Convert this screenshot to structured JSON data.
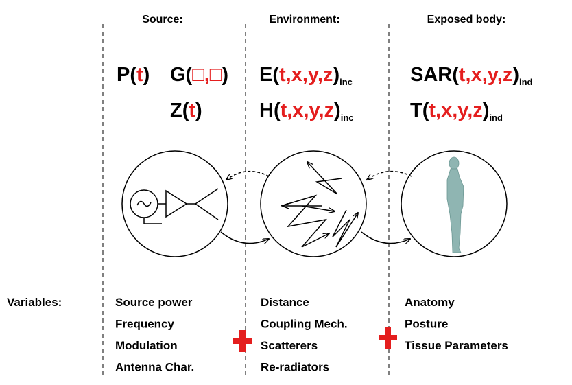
{
  "headers": [
    "Source:",
    "Environment:",
    "Exposed body:"
  ],
  "formulas": [
    {
      "parts": [
        "P(",
        "t",
        ")"
      ]
    },
    {
      "parts": [
        "G(",
        "□,□",
        ")"
      ]
    },
    {
      "parts": [
        "Z(",
        "t",
        ")"
      ]
    },
    {
      "parts": [
        "E(",
        "t,x,y,z",
        ")"
      ],
      "sub": "inc"
    },
    {
      "parts": [
        "H(",
        "t,x,y,z",
        ")"
      ],
      "sub": "inc"
    },
    {
      "parts": [
        "SAR(",
        "t,x,y,z",
        ")"
      ],
      "sub": "ind"
    },
    {
      "parts": [
        "T(",
        "t,x,y,z",
        ")"
      ],
      "sub": "ind"
    }
  ],
  "variables_label": "Variables:",
  "variables": [
    [
      "Source power",
      "Frequency",
      "Modulation",
      "Antenna Char."
    ],
    [
      "Distance",
      "Coupling Mech.",
      "Scatterers",
      "Re-radiators"
    ],
    [
      "Anatomy",
      "Posture",
      "Tissue Parameters"
    ]
  ]
}
